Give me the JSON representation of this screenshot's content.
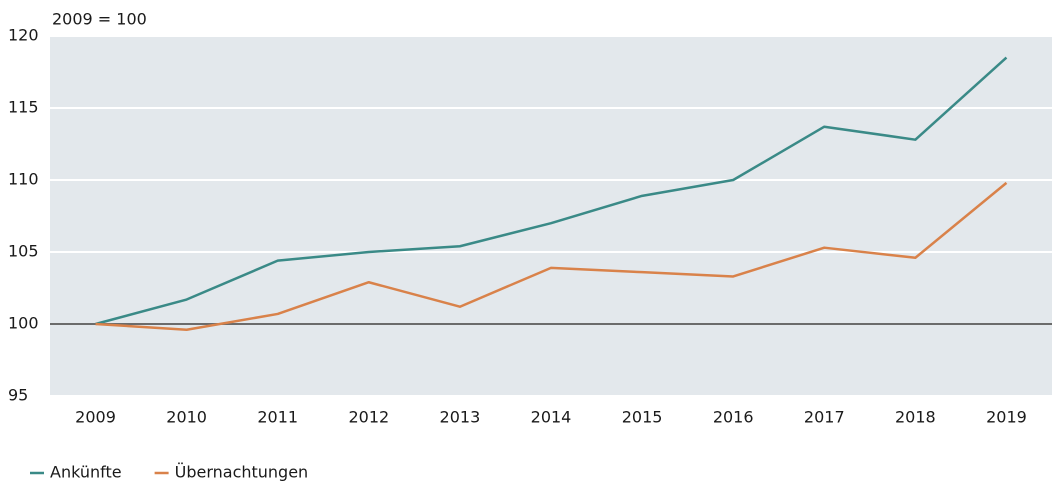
{
  "chart_data": {
    "type": "line",
    "subtitle": "2009 = 100",
    "categories": [
      "2009",
      "2010",
      "2011",
      "2012",
      "2013",
      "2014",
      "2015",
      "2016",
      "2017",
      "2018",
      "2019"
    ],
    "series": [
      {
        "name": "Ankünfte",
        "color": "#3a8a87",
        "values": [
          100,
          101.7,
          104.4,
          105.0,
          105.4,
          107.0,
          108.9,
          110.0,
          113.7,
          112.8,
          118.5
        ]
      },
      {
        "name": "Übernachtungen",
        "color": "#d9824a",
        "values": [
          100,
          99.6,
          100.7,
          102.9,
          101.2,
          103.9,
          103.6,
          103.3,
          105.3,
          104.6,
          109.8
        ]
      }
    ],
    "ylim": [
      95,
      120
    ],
    "yticks": [
      95,
      100,
      105,
      110,
      115,
      120
    ],
    "grid": true,
    "baseline": 100,
    "legend": "bottom-left"
  }
}
